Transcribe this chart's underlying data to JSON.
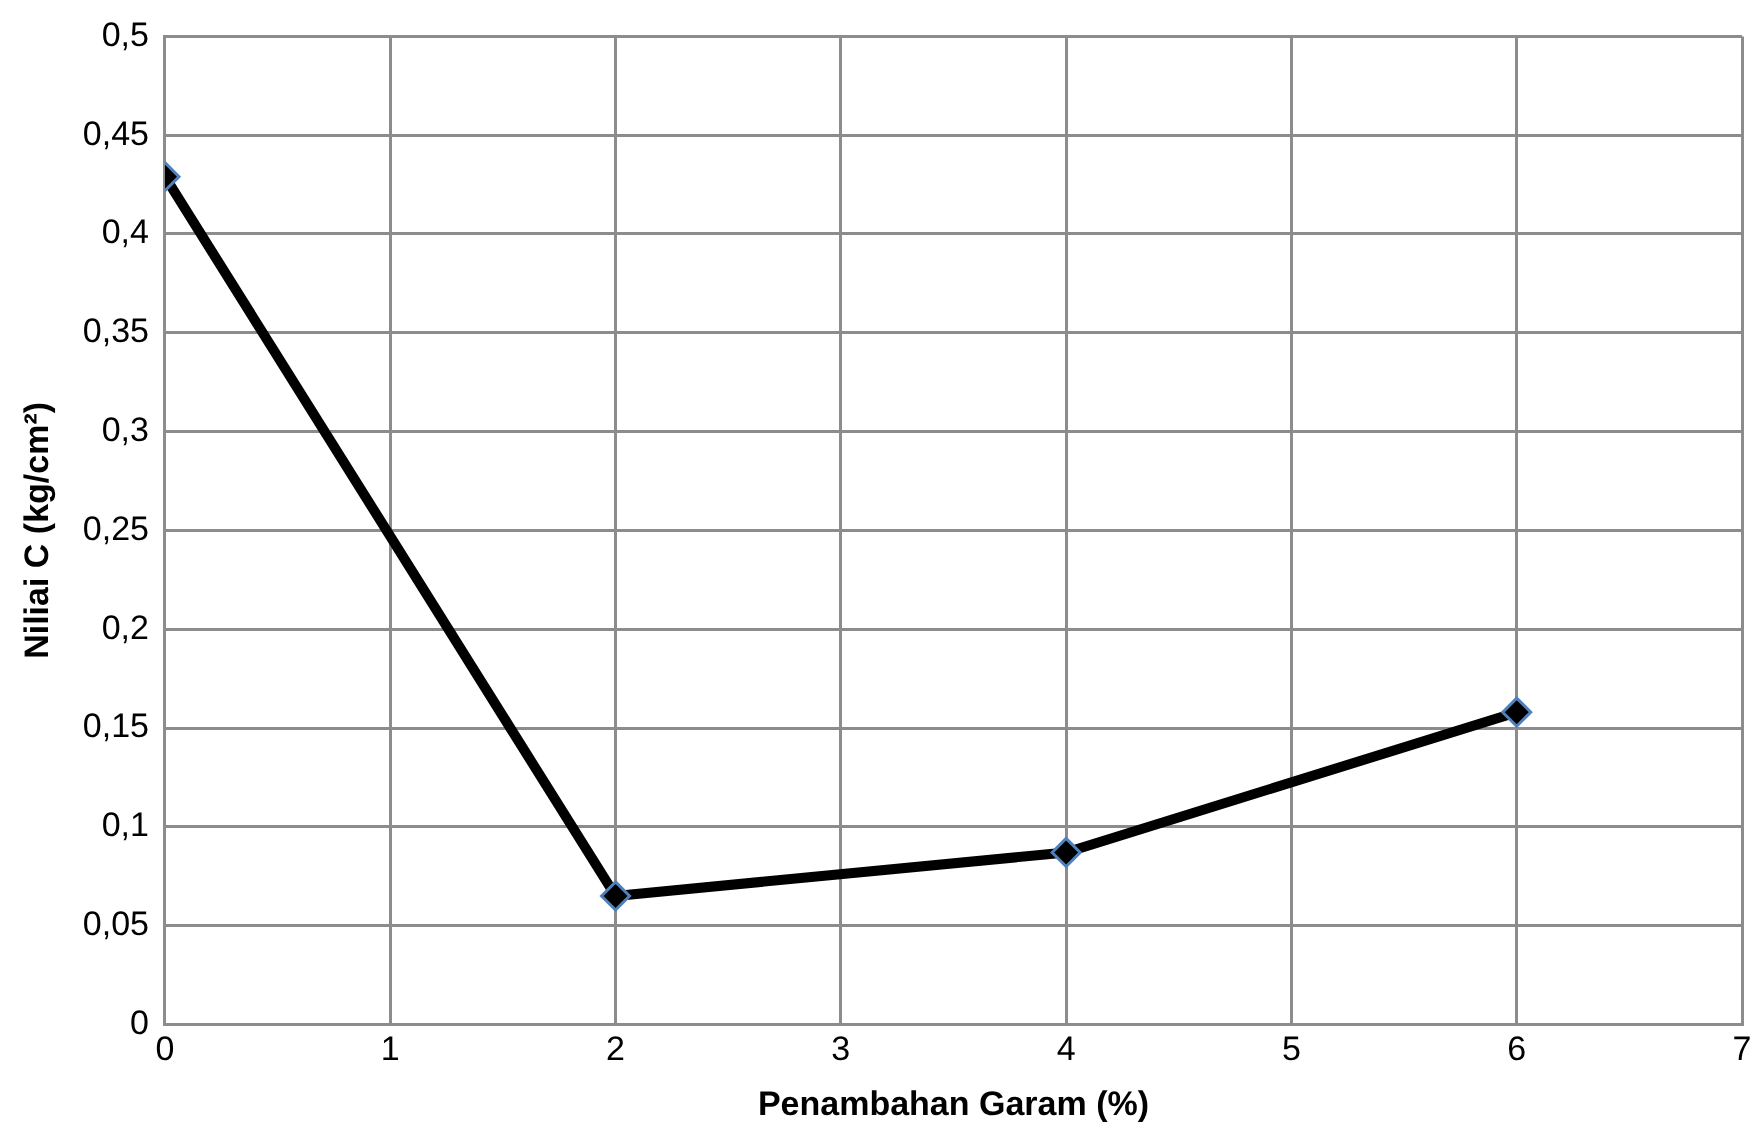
{
  "chart_data": {
    "type": "line",
    "xlabel": "Penambahan Garam (%)",
    "ylabel": "Niliai C (kg/cm²)",
    "x": [
      0,
      2,
      4,
      6
    ],
    "series": [
      {
        "color": "#000000",
        "values": [
          0.429,
          0.065,
          0.087,
          0.158
        ]
      }
    ],
    "xlim": [
      0,
      7
    ],
    "xticks": [
      0,
      1,
      2,
      3,
      4,
      5,
      6,
      7
    ],
    "ylim": [
      0,
      0.5
    ],
    "yticks": [
      {
        "value": 0,
        "label": "0"
      },
      {
        "value": 0.05,
        "label": "0,05"
      },
      {
        "value": 0.1,
        "label": "0,1"
      },
      {
        "value": 0.15,
        "label": "0,15"
      },
      {
        "value": 0.2,
        "label": "0,2"
      },
      {
        "value": 0.25,
        "label": "0,25"
      },
      {
        "value": 0.3,
        "label": "0,3"
      },
      {
        "value": 0.35,
        "label": "0,35"
      },
      {
        "value": 0.4,
        "label": "0,4"
      },
      {
        "value": 0.45,
        "label": "0,45"
      },
      {
        "value": 0.5,
        "label": "0,5"
      }
    ],
    "grid": true,
    "legend": false,
    "marker": "diamond",
    "line_style": "solid"
  }
}
